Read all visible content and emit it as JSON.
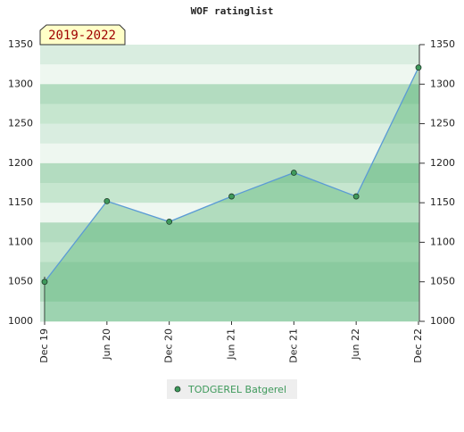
{
  "chart_data": {
    "type": "line",
    "title": "WOF ratinglist",
    "annotation": "2019-2022",
    "categories": [
      "Dec 19",
      "Jun 20",
      "Dec 20",
      "Jun 21",
      "Dec 21",
      "Jun 22",
      "Dec 22"
    ],
    "series": [
      {
        "name": "TODGEREL Batgerel",
        "color": "#5b9bd5",
        "marker_color": "#3f9a5c",
        "values": [
          1050,
          1152,
          1126,
          1158,
          1188,
          1158,
          1321
        ]
      }
    ],
    "ylim": [
      1000,
      1350
    ],
    "yticks": [
      1000,
      1050,
      1100,
      1150,
      1200,
      1250,
      1300,
      1350
    ]
  }
}
